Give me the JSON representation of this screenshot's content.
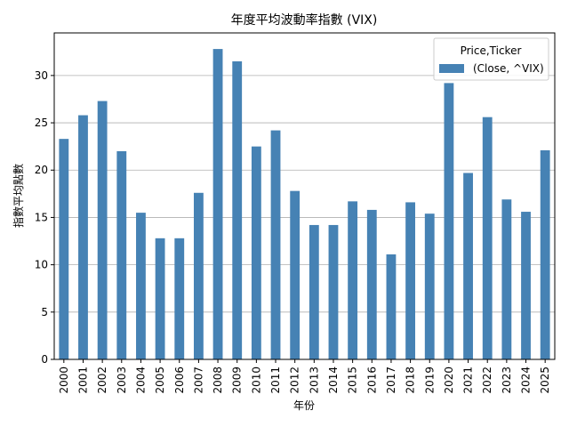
{
  "chart_data": {
    "type": "bar",
    "title": "年度平均波動率指數 (VIX)",
    "xlabel": "年份",
    "ylabel": "指數平均點數",
    "categories": [
      "2000",
      "2001",
      "2002",
      "2003",
      "2004",
      "2005",
      "2006",
      "2007",
      "2008",
      "2009",
      "2010",
      "2011",
      "2012",
      "2013",
      "2014",
      "2015",
      "2016",
      "2017",
      "2018",
      "2019",
      "2020",
      "2021",
      "2022",
      "2023",
      "2024",
      "2025"
    ],
    "series": [
      {
        "name": "(Close, ^VIX)",
        "color": "#4682b4",
        "values": [
          23.3,
          25.8,
          27.3,
          22.0,
          15.5,
          12.8,
          12.8,
          17.6,
          32.8,
          31.5,
          22.5,
          24.2,
          17.8,
          14.2,
          14.2,
          16.7,
          15.8,
          11.1,
          16.6,
          15.4,
          29.2,
          19.7,
          25.6,
          16.9,
          15.6,
          22.1
        ]
      }
    ],
    "ylim": [
      0,
      34.5
    ],
    "yticks": [
      0,
      5,
      10,
      15,
      20,
      25,
      30
    ],
    "grid": "y",
    "legend": {
      "title": "Price,Ticker",
      "placement": "upper right"
    }
  }
}
